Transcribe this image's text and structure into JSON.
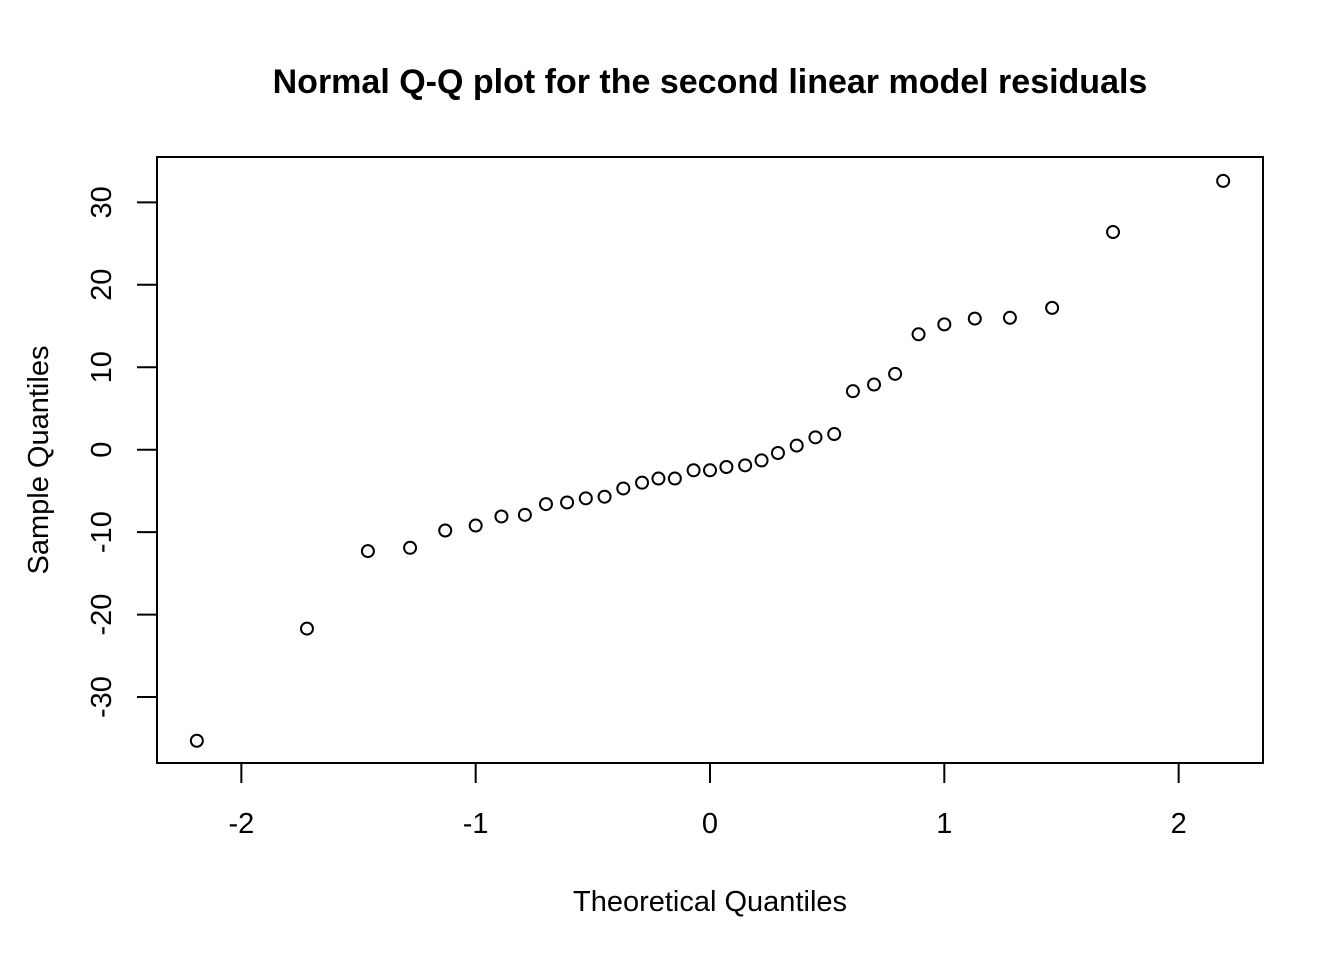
{
  "chart_data": {
    "type": "scatter",
    "title": "Normal Q-Q plot for the second linear model residuals",
    "xlabel": "Theoretical Quantiles",
    "ylabel": "Sample Quantiles",
    "xlim": [
      -2.36,
      2.36
    ],
    "ylim": [
      -38.0,
      35.5
    ],
    "x_ticks": [
      -2,
      -1,
      0,
      1,
      2
    ],
    "x_tick_labels": [
      "-2",
      "-1",
      "0",
      "1",
      "2"
    ],
    "y_ticks": [
      -30,
      -20,
      -10,
      0,
      10,
      20,
      30
    ],
    "y_tick_labels": [
      "-30",
      "-20",
      "-10",
      "0",
      "10",
      "20",
      "30"
    ],
    "grid": false,
    "legend": "none",
    "point_color": "#000000",
    "marker": "open-circle",
    "points": [
      {
        "x": -2.19,
        "y": -35.3
      },
      {
        "x": -1.72,
        "y": -21.7
      },
      {
        "x": -1.46,
        "y": -12.3
      },
      {
        "x": -1.28,
        "y": -11.9
      },
      {
        "x": -1.13,
        "y": -9.8
      },
      {
        "x": -1.0,
        "y": -9.2
      },
      {
        "x": -0.89,
        "y": -8.1
      },
      {
        "x": -0.79,
        "y": -7.9
      },
      {
        "x": -0.7,
        "y": -6.6
      },
      {
        "x": -0.61,
        "y": -6.4
      },
      {
        "x": -0.53,
        "y": -5.9
      },
      {
        "x": -0.45,
        "y": -5.7
      },
      {
        "x": -0.37,
        "y": -4.7
      },
      {
        "x": -0.29,
        "y": -4.0
      },
      {
        "x": -0.22,
        "y": -3.5
      },
      {
        "x": -0.15,
        "y": -3.5
      },
      {
        "x": -0.07,
        "y": -2.5
      },
      {
        "x": 0.0,
        "y": -2.5
      },
      {
        "x": 0.07,
        "y": -2.1
      },
      {
        "x": 0.15,
        "y": -1.9
      },
      {
        "x": 0.22,
        "y": -1.3
      },
      {
        "x": 0.29,
        "y": -0.4
      },
      {
        "x": 0.37,
        "y": 0.5
      },
      {
        "x": 0.45,
        "y": 1.5
      },
      {
        "x": 0.53,
        "y": 1.9
      },
      {
        "x": 0.61,
        "y": 7.1
      },
      {
        "x": 0.7,
        "y": 7.9
      },
      {
        "x": 0.79,
        "y": 9.2
      },
      {
        "x": 0.89,
        "y": 14.0
      },
      {
        "x": 1.0,
        "y": 15.2
      },
      {
        "x": 1.13,
        "y": 15.9
      },
      {
        "x": 1.28,
        "y": 16.0
      },
      {
        "x": 1.46,
        "y": 17.2
      },
      {
        "x": 1.72,
        "y": 26.4
      },
      {
        "x": 2.19,
        "y": 32.6
      }
    ]
  }
}
